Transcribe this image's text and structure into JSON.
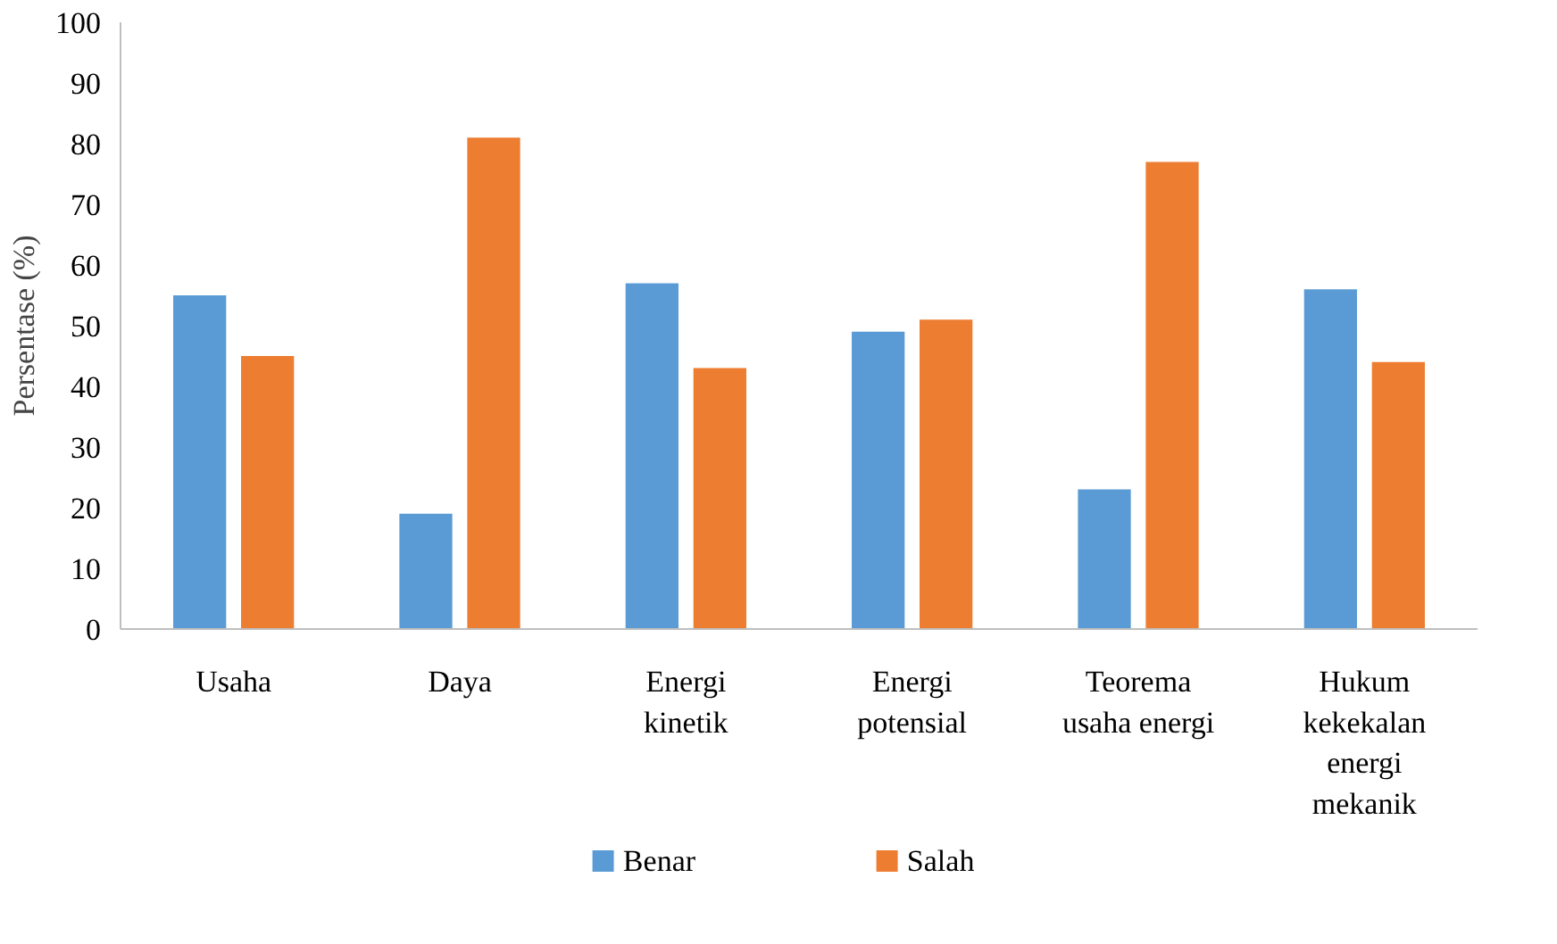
{
  "chart_data": {
    "type": "bar",
    "ylabel": "Persentase (%)",
    "categories": [
      "Usaha",
      "Daya",
      "Energi kinetik",
      "Energi potensial",
      "Teorema usaha energi",
      "Hukum kekekalan energi mekanik"
    ],
    "series": [
      {
        "name": "Benar",
        "color": "#5b9bd5",
        "values": [
          55,
          19,
          57,
          49,
          23,
          56
        ]
      },
      {
        "name": "Salah",
        "color": "#ed7d31",
        "values": [
          45,
          81,
          43,
          51,
          77,
          44
        ]
      }
    ],
    "ylim": [
      0,
      100
    ],
    "yticks": [
      0,
      10,
      20,
      30,
      40,
      50,
      60,
      70,
      80,
      90,
      100
    ],
    "grid": false,
    "legend": "bottom"
  }
}
